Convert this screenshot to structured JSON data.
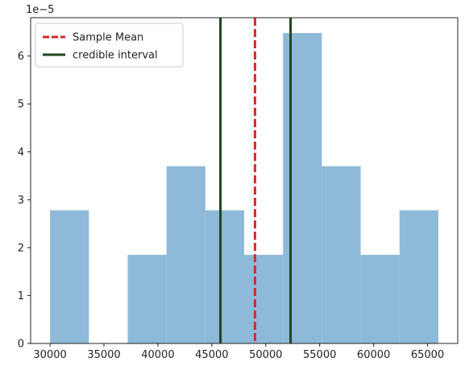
{
  "chart_data": {
    "type": "bar",
    "title": "",
    "xlabel": "",
    "ylabel": "",
    "y_scale_label": "1e−5",
    "bin_edges": [
      30000,
      33600,
      37200,
      40800,
      44400,
      48000,
      51600,
      55200,
      58800,
      62400,
      66000
    ],
    "values": [
      2.78e-05,
      0,
      1.85e-05,
      3.7e-05,
      2.78e-05,
      1.85e-05,
      6.48e-05,
      3.7e-05,
      1.85e-05,
      2.78e-05
    ],
    "xlim": [
      28200,
      67800
    ],
    "ylim": [
      0,
      6.8e-05
    ],
    "x_ticks": [
      30000,
      35000,
      40000,
      45000,
      50000,
      55000,
      60000,
      65000
    ],
    "y_ticks": [
      0,
      1,
      2,
      3,
      4,
      5,
      6
    ],
    "sample_mean": 49000,
    "credible_interval": [
      45800,
      52300
    ],
    "legend": {
      "position": "top-left",
      "entries": [
        {
          "label": "Sample Mean",
          "style": "dashed",
          "color": "#d62728"
        },
        {
          "label": "credible interval",
          "style": "solid",
          "color": "#1e4620"
        }
      ]
    },
    "colors": {
      "bars": "#8fb9d9",
      "mean_line": "#d62728",
      "interval_line": "#1e4620"
    },
    "grid": false
  }
}
